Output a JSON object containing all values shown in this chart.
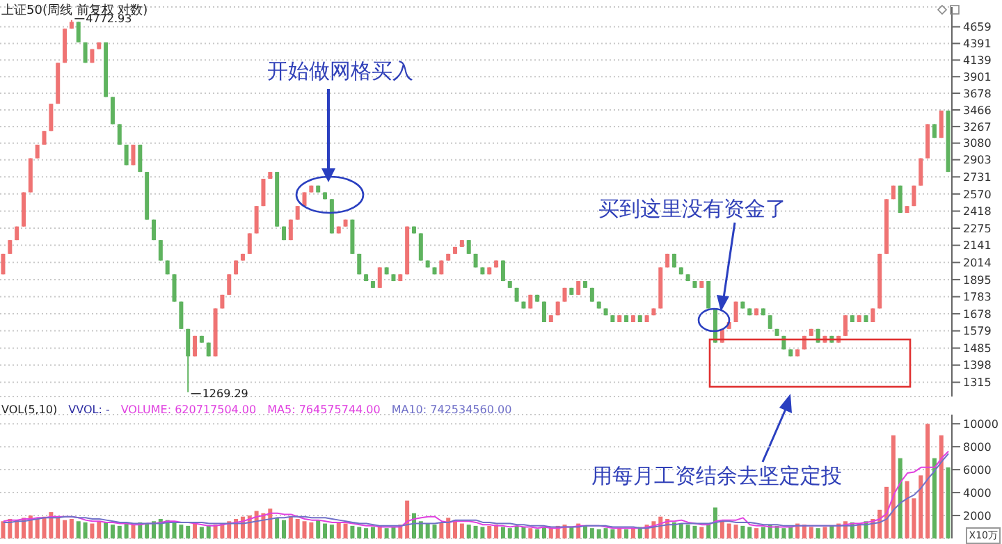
{
  "chart_data": [
    {
      "type": "candlestick",
      "title": "上证50(周线 前复权 对数)",
      "categories": [
        null,
        null,
        null,
        null,
        null,
        null,
        null,
        null,
        null,
        null,
        null,
        null,
        null,
        null,
        null,
        null,
        null,
        null,
        null,
        null,
        null,
        null,
        null,
        null,
        null,
        null,
        null,
        null,
        null,
        null,
        null,
        null,
        null,
        null,
        null,
        null,
        null,
        null,
        null,
        null,
        null,
        null,
        null,
        null,
        null,
        null,
        null,
        null,
        null,
        null,
        null,
        null,
        null,
        null,
        null,
        null,
        null,
        null,
        null,
        null,
        null,
        null,
        null,
        null,
        null,
        null,
        null,
        null,
        null,
        null,
        null,
        null,
        null,
        null,
        null,
        null,
        null,
        null,
        null,
        null,
        null,
        null,
        null,
        null,
        null,
        null,
        null,
        null,
        null,
        null,
        null,
        null,
        null,
        null,
        null,
        null,
        null,
        null,
        null,
        null,
        null,
        null,
        null,
        null,
        null,
        null,
        null,
        null,
        null,
        null,
        null,
        null,
        null,
        null,
        null,
        null,
        null,
        null,
        null,
        null,
        null,
        null,
        null,
        null,
        null,
        null,
        null,
        null,
        null,
        null,
        null,
        null,
        null,
        null,
        null,
        null,
        null,
        null,
        null
      ],
      "ohlc": [
        [
          1931,
          2077,
          1931,
          2077
        ],
        [
          2077,
          2181,
          2077,
          2181
        ],
        [
          2181,
          2289,
          2181,
          2289
        ],
        [
          2289,
          2585,
          2289,
          2585
        ],
        [
          2585,
          2918,
          2585,
          2918
        ],
        [
          2918,
          3063,
          2918,
          3063
        ],
        [
          3063,
          3216,
          3063,
          3216
        ],
        [
          3216,
          3543,
          3216,
          3543
        ],
        [
          3543,
          4099,
          3543,
          4099
        ],
        [
          4099,
          4628,
          4099,
          4628
        ],
        [
          4628,
          4772.93,
          4628,
          4741
        ],
        [
          4741,
          4741,
          4408,
          4408
        ],
        [
          4408,
          4408,
          4099,
          4099
        ],
        [
          4099,
          4303,
          4099,
          4303
        ],
        [
          4303,
          4408,
          4303,
          4408
        ],
        [
          4408,
          4408,
          3630,
          3630
        ],
        [
          3630,
          3630,
          3295,
          3295
        ],
        [
          3295,
          3295,
          3063,
          3063
        ],
        [
          3063,
          3063,
          2848,
          2848
        ],
        [
          2848,
          3063,
          2848,
          3063
        ],
        [
          3063,
          3063,
          2780,
          2780
        ],
        [
          2780,
          2780,
          2346,
          2346
        ],
        [
          2346,
          2346,
          2181,
          2181
        ],
        [
          2181,
          2181,
          2028,
          2028
        ],
        [
          2028,
          2028,
          1931,
          1931
        ],
        [
          1931,
          1931,
          1752,
          1752
        ],
        [
          1752,
          1752,
          1590,
          1590
        ],
        [
          1590,
          1590,
          1269.29,
          1442
        ],
        [
          1442,
          1551,
          1442,
          1551
        ],
        [
          1551,
          1551,
          1514,
          1514
        ],
        [
          1514,
          1514,
          1442,
          1442
        ],
        [
          1442,
          1710,
          1442,
          1710
        ],
        [
          1710,
          1795,
          1710,
          1795
        ],
        [
          1795,
          1931,
          1795,
          1931
        ],
        [
          1931,
          2028,
          1931,
          2028
        ],
        [
          2028,
          2077,
          2028,
          2077
        ],
        [
          2077,
          2234,
          2077,
          2234
        ],
        [
          2234,
          2462,
          2234,
          2462
        ],
        [
          2462,
          2713,
          2462,
          2713
        ],
        [
          2713,
          2780,
          2713,
          2780
        ],
        [
          2780,
          2780,
          2289,
          2289
        ],
        [
          2289,
          2289,
          2181,
          2181
        ],
        [
          2181,
          2346,
          2181,
          2346
        ],
        [
          2346,
          2462,
          2346,
          2462
        ],
        [
          2462,
          2585,
          2462,
          2585
        ],
        [
          2585,
          2648,
          2585,
          2648
        ],
        [
          2648,
          2648,
          2585,
          2585
        ],
        [
          2585,
          2585,
          2523,
          2523
        ],
        [
          2523,
          2523,
          2234,
          2234
        ],
        [
          2234,
          2289,
          2234,
          2289
        ],
        [
          2289,
          2346,
          2289,
          2346
        ],
        [
          2346,
          2346,
          2077,
          2077
        ],
        [
          2077,
          2077,
          1931,
          1931
        ],
        [
          1931,
          1931,
          1885,
          1885
        ],
        [
          1885,
          1885,
          1840,
          1840
        ],
        [
          1840,
          1979,
          1840,
          1979
        ],
        [
          1979,
          1979,
          1931,
          1931
        ],
        [
          1931,
          1931,
          1885,
          1885
        ],
        [
          1885,
          1931,
          1885,
          1931
        ],
        [
          1931,
          2289,
          1931,
          2289
        ],
        [
          2289,
          2289,
          2234,
          2234
        ],
        [
          2234,
          2234,
          2028,
          2028
        ],
        [
          2028,
          2028,
          1979,
          1979
        ],
        [
          1979,
          1979,
          1931,
          1931
        ],
        [
          1931,
          2028,
          1931,
          2028
        ],
        [
          2028,
          2077,
          2028,
          2077
        ],
        [
          2077,
          2129,
          2077,
          2129
        ],
        [
          2129,
          2181,
          2129,
          2181
        ],
        [
          2181,
          2181,
          2077,
          2077
        ],
        [
          2077,
          2077,
          1979,
          1979
        ],
        [
          1979,
          1979,
          1931,
          1931
        ],
        [
          1931,
          1979,
          1931,
          1979
        ],
        [
          1979,
          2028,
          1979,
          2028
        ],
        [
          2028,
          2028,
          1885,
          1885
        ],
        [
          1885,
          1885,
          1840,
          1840
        ],
        [
          1840,
          1840,
          1752,
          1752
        ],
        [
          1752,
          1752,
          1710,
          1710
        ],
        [
          1710,
          1795,
          1710,
          1795
        ],
        [
          1795,
          1795,
          1752,
          1752
        ],
        [
          1752,
          1752,
          1629,
          1629
        ],
        [
          1629,
          1669,
          1629,
          1669
        ],
        [
          1669,
          1752,
          1669,
          1752
        ],
        [
          1752,
          1840,
          1752,
          1840
        ],
        [
          1840,
          1840,
          1795,
          1795
        ],
        [
          1795,
          1885,
          1795,
          1885
        ],
        [
          1885,
          1885,
          1840,
          1840
        ],
        [
          1840,
          1840,
          1752,
          1752
        ],
        [
          1752,
          1752,
          1710,
          1710
        ],
        [
          1710,
          1710,
          1669,
          1669
        ],
        [
          1669,
          1669,
          1629,
          1629
        ],
        [
          1629,
          1669,
          1629,
          1669
        ],
        [
          1669,
          1669,
          1629,
          1629
        ],
        [
          1629,
          1669,
          1629,
          1669
        ],
        [
          1669,
          1669,
          1629,
          1629
        ],
        [
          1629,
          1669,
          1629,
          1669
        ],
        [
          1669,
          1710,
          1669,
          1710
        ],
        [
          1710,
          1979,
          1710,
          1979
        ],
        [
          1979,
          2077,
          1979,
          2077
        ],
        [
          2077,
          2077,
          1979,
          1979
        ],
        [
          1979,
          1979,
          1931,
          1931
        ],
        [
          1931,
          1931,
          1885,
          1885
        ],
        [
          1885,
          1885,
          1840,
          1840
        ],
        [
          1840,
          1885,
          1840,
          1885
        ],
        [
          1885,
          1885,
          1710,
          1710
        ],
        [
          1710,
          1710,
          1514,
          1514
        ],
        [
          1514,
          1590,
          1514,
          1590
        ],
        [
          1590,
          1629,
          1590,
          1629
        ],
        [
          1629,
          1752,
          1629,
          1752
        ],
        [
          1752,
          1752,
          1710,
          1710
        ],
        [
          1710,
          1710,
          1669,
          1669
        ],
        [
          1669,
          1710,
          1669,
          1710
        ],
        [
          1710,
          1710,
          1669,
          1669
        ],
        [
          1669,
          1669,
          1590,
          1590
        ],
        [
          1590,
          1590,
          1551,
          1551
        ],
        [
          1551,
          1551,
          1478,
          1478
        ],
        [
          1478,
          1478,
          1442,
          1442
        ],
        [
          1442,
          1478,
          1442,
          1478
        ],
        [
          1478,
          1551,
          1478,
          1551
        ],
        [
          1551,
          1590,
          1551,
          1590
        ],
        [
          1590,
          1590,
          1514,
          1514
        ],
        [
          1514,
          1551,
          1514,
          1551
        ],
        [
          1551,
          1551,
          1514,
          1514
        ],
        [
          1514,
          1551,
          1514,
          1551
        ],
        [
          1551,
          1669,
          1551,
          1669
        ],
        [
          1669,
          1669,
          1629,
          1629
        ],
        [
          1629,
          1669,
          1629,
          1669
        ],
        [
          1669,
          1669,
          1629,
          1629
        ],
        [
          1629,
          1710,
          1629,
          1710
        ],
        [
          1710,
          2077,
          1710,
          2077
        ],
        [
          2077,
          2523,
          2077,
          2523
        ],
        [
          2523,
          2648,
          2523,
          2648
        ],
        [
          2648,
          2648,
          2403,
          2403
        ],
        [
          2403,
          2462,
          2403,
          2462
        ],
        [
          2462,
          2648,
          2462,
          2648
        ],
        [
          2648,
          2918,
          2648,
          2918
        ],
        [
          2918,
          3295,
          2918,
          3295
        ],
        [
          3295,
          3295,
          3138,
          3138
        ],
        [
          3138,
          3458,
          3138,
          3458
        ],
        [
          3458,
          3458,
          2780,
          2780
        ]
      ],
      "colors": [
        "#ef7373",
        "#ef7373",
        "#ef7373",
        "#ef7373",
        "#ef7373",
        "#ef7373",
        "#ef7373",
        "#ef7373",
        "#ef7373",
        "#ef7373",
        "#ef7373",
        "#5fb35f",
        "#5fb35f",
        "#ef7373",
        "#ef7373",
        "#5fb35f",
        "#5fb35f",
        "#5fb35f",
        "#5fb35f",
        "#ef7373",
        "#5fb35f",
        "#5fb35f",
        "#5fb35f",
        "#5fb35f",
        "#5fb35f",
        "#5fb35f",
        "#5fb35f",
        "#5fb35f",
        "#ef7373",
        "#5fb35f",
        "#5fb35f",
        "#ef7373",
        "#ef7373",
        "#ef7373",
        "#ef7373",
        "#ef7373",
        "#ef7373",
        "#ef7373",
        "#ef7373",
        "#ef7373",
        "#5fb35f",
        "#5fb35f",
        "#ef7373",
        "#ef7373",
        "#ef7373",
        "#ef7373",
        "#5fb35f",
        "#5fb35f",
        "#5fb35f",
        "#ef7373",
        "#ef7373",
        "#5fb35f",
        "#5fb35f",
        "#5fb35f",
        "#5fb35f",
        "#ef7373",
        "#5fb35f",
        "#5fb35f",
        "#ef7373",
        "#ef7373",
        "#5fb35f",
        "#5fb35f",
        "#5fb35f",
        "#5fb35f",
        "#ef7373",
        "#ef7373",
        "#ef7373",
        "#ef7373",
        "#5fb35f",
        "#5fb35f",
        "#5fb35f",
        "#ef7373",
        "#ef7373",
        "#5fb35f",
        "#5fb35f",
        "#5fb35f",
        "#5fb35f",
        "#ef7373",
        "#5fb35f",
        "#5fb35f",
        "#ef7373",
        "#ef7373",
        "#ef7373",
        "#5fb35f",
        "#ef7373",
        "#5fb35f",
        "#5fb35f",
        "#5fb35f",
        "#5fb35f",
        "#5fb35f",
        "#ef7373",
        "#5fb35f",
        "#ef7373",
        "#5fb35f",
        "#ef7373",
        "#ef7373",
        "#ef7373",
        "#ef7373",
        "#5fb35f",
        "#5fb35f",
        "#5fb35f",
        "#5fb35f",
        "#ef7373",
        "#5fb35f",
        "#5fb35f",
        "#ef7373",
        "#ef7373",
        "#ef7373",
        "#5fb35f",
        "#5fb35f",
        "#ef7373",
        "#5fb35f",
        "#5fb35f",
        "#5fb35f",
        "#5fb35f",
        "#5fb35f",
        "#ef7373",
        "#ef7373",
        "#ef7373",
        "#5fb35f",
        "#ef7373",
        "#5fb35f",
        "#ef7373",
        "#ef7373",
        "#5fb35f",
        "#ef7373",
        "#5fb35f",
        "#ef7373",
        "#ef7373",
        "#ef7373",
        "#ef7373",
        "#5fb35f",
        "#ef7373",
        "#ef7373",
        "#ef7373",
        "#ef7373",
        "#5fb35f",
        "#ef7373",
        "#5fb35f"
      ],
      "log": true,
      "ylim": [
        1250,
        5000
      ],
      "yticks": [
        1315,
        1398,
        1485,
        1579,
        1678,
        1783,
        1895,
        2014,
        2141,
        2275,
        2418,
        2570,
        2731,
        2903,
        3080,
        3267,
        3466,
        3678,
        3901,
        4139,
        4391,
        4659
      ],
      "grid": "y",
      "tick_labels": "y",
      "annotations": [
        "4772.93",
        "1269.29",
        "开始做网格买入",
        "买到这里没有资金了",
        "用每月工资结余去坚定定投"
      ]
    },
    {
      "type": "bar",
      "title": "VOL(5,10)",
      "categories": [
        null,
        null,
        null,
        null,
        null,
        null,
        null,
        null,
        null,
        null,
        null,
        null,
        null,
        null,
        null,
        null,
        null,
        null,
        null,
        null,
        null,
        null,
        null,
        null,
        null,
        null,
        null,
        null,
        null,
        null,
        null,
        null,
        null,
        null,
        null,
        null,
        null,
        null,
        null,
        null,
        null,
        null,
        null,
        null,
        null,
        null,
        null,
        null,
        null,
        null,
        null,
        null,
        null,
        null,
        null,
        null,
        null,
        null,
        null,
        null,
        null,
        null,
        null,
        null,
        null,
        null,
        null,
        null,
        null,
        null,
        null,
        null,
        null,
        null,
        null,
        null,
        null,
        null,
        null,
        null,
        null,
        null,
        null,
        null,
        null,
        null,
        null,
        null,
        null,
        null,
        null,
        null,
        null,
        null,
        null,
        null,
        null,
        null,
        null,
        null,
        null,
        null,
        null,
        null,
        null,
        null,
        null,
        null,
        null,
        null,
        null,
        null,
        null,
        null,
        null,
        null,
        null,
        null,
        null,
        null,
        null,
        null,
        null,
        null,
        null,
        null,
        null,
        null,
        null,
        null,
        null,
        null,
        null,
        null,
        null,
        null,
        null,
        null,
        null
      ],
      "series": [
        {
          "type": "bar",
          "colors": [
            "#ef7373",
            "#ef7373",
            "#ef7373",
            "#ef7373",
            "#ef7373",
            "#ef7373",
            "#ef7373",
            "#ef7373",
            "#ef7373",
            "#ef7373",
            "#ef7373",
            "#5fb35f",
            "#5fb35f",
            "#ef7373",
            "#ef7373",
            "#5fb35f",
            "#5fb35f",
            "#5fb35f",
            "#5fb35f",
            "#ef7373",
            "#5fb35f",
            "#5fb35f",
            "#5fb35f",
            "#5fb35f",
            "#5fb35f",
            "#5fb35f",
            "#5fb35f",
            "#5fb35f",
            "#ef7373",
            "#5fb35f",
            "#5fb35f",
            "#ef7373",
            "#ef7373",
            "#ef7373",
            "#ef7373",
            "#ef7373",
            "#ef7373",
            "#ef7373",
            "#ef7373",
            "#ef7373",
            "#5fb35f",
            "#5fb35f",
            "#ef7373",
            "#ef7373",
            "#ef7373",
            "#ef7373",
            "#5fb35f",
            "#5fb35f",
            "#5fb35f",
            "#ef7373",
            "#ef7373",
            "#5fb35f",
            "#5fb35f",
            "#5fb35f",
            "#5fb35f",
            "#ef7373",
            "#5fb35f",
            "#5fb35f",
            "#ef7373",
            "#ef7373",
            "#5fb35f",
            "#5fb35f",
            "#5fb35f",
            "#5fb35f",
            "#ef7373",
            "#ef7373",
            "#ef7373",
            "#ef7373",
            "#5fb35f",
            "#5fb35f",
            "#5fb35f",
            "#ef7373",
            "#ef7373",
            "#5fb35f",
            "#5fb35f",
            "#5fb35f",
            "#5fb35f",
            "#ef7373",
            "#5fb35f",
            "#5fb35f",
            "#ef7373",
            "#ef7373",
            "#ef7373",
            "#5fb35f",
            "#ef7373",
            "#5fb35f",
            "#5fb35f",
            "#5fb35f",
            "#5fb35f",
            "#5fb35f",
            "#ef7373",
            "#5fb35f",
            "#ef7373",
            "#5fb35f",
            "#ef7373",
            "#ef7373",
            "#ef7373",
            "#ef7373",
            "#5fb35f",
            "#5fb35f",
            "#5fb35f",
            "#5fb35f",
            "#ef7373",
            "#5fb35f",
            "#5fb35f",
            "#ef7373",
            "#ef7373",
            "#ef7373",
            "#5fb35f",
            "#5fb35f",
            "#ef7373",
            "#5fb35f",
            "#5fb35f",
            "#5fb35f",
            "#5fb35f",
            "#5fb35f",
            "#ef7373",
            "#ef7373",
            "#ef7373",
            "#5fb35f",
            "#ef7373",
            "#5fb35f",
            "#ef7373",
            "#ef7373",
            "#5fb35f",
            "#ef7373",
            "#5fb35f",
            "#ef7373",
            "#ef7373",
            "#ef7373",
            "#ef7373",
            "#5fb35f",
            "#ef7373",
            "#ef7373",
            "#ef7373",
            "#ef7373",
            "#5fb35f",
            "#ef7373",
            "#5fb35f"
          ],
          "values": [
            1500,
            1700,
            1600,
            1800,
            2000,
            1700,
            1900,
            2300,
            1800,
            1600,
            1700,
            1500,
            1400,
            1300,
            1500,
            1400,
            1200,
            1100,
            1300,
            1200,
            1400,
            1300,
            1500,
            1700,
            1600,
            1400,
            1200,
            1100,
            1300,
            1000,
            1100,
            1200,
            1300,
            1500,
            1700,
            1900,
            2000,
            2400,
            2200,
            2600,
            1800,
            1600,
            1900,
            1700,
            1500,
            1400,
            1600,
            1300,
            1200,
            1400,
            1300,
            1100,
            1000,
            900,
            1000,
            1100,
            900,
            1000,
            1200,
            3300,
            2200,
            1500,
            1300,
            1200,
            1400,
            1800,
            1600,
            1300,
            1200,
            1100,
            1000,
            1100,
            1200,
            1000,
            900,
            1100,
            1000,
            900,
            800,
            1000,
            900,
            1100,
            1200,
            1000,
            1300,
            1100,
            900,
            800,
            900,
            800,
            900,
            800,
            900,
            1000,
            1200,
            1500,
            1900,
            1700,
            1400,
            1300,
            1200,
            1100,
            1000,
            1300,
            2700,
            1500,
            1300,
            1200,
            1100,
            1000,
            900,
            1000,
            1200,
            1100,
            900,
            1000,
            1300,
            1200,
            1000,
            900,
            1000,
            1100,
            1300,
            1500,
            1400,
            1300,
            1500,
            1700,
            2500,
            4500,
            9000,
            7000,
            5000,
            3500,
            5500,
            10000,
            7000,
            9000,
            6200
          ]
        },
        {
          "type": "line",
          "color": "#e040e0",
          "values": [
            1500,
            1600,
            1600,
            1700,
            1700,
            1800,
            1800,
            1900,
            1900,
            1900,
            1900,
            1800,
            1600,
            1500,
            1500,
            1400,
            1400,
            1300,
            1300,
            1200,
            1200,
            1300,
            1300,
            1400,
            1500,
            1500,
            1400,
            1400,
            1300,
            1200,
            1100,
            1100,
            1200,
            1300,
            1400,
            1500,
            1700,
            1900,
            2000,
            2200,
            2200,
            2100,
            2100,
            1900,
            1700,
            1600,
            1600,
            1500,
            1400,
            1400,
            1400,
            1300,
            1200,
            1100,
            1100,
            1000,
            1000,
            1000,
            1000,
            1500,
            1700,
            1800,
            1900,
            1900,
            1500,
            1400,
            1500,
            1500,
            1500,
            1400,
            1200,
            1200,
            1100,
            1100,
            1000,
            1100,
            1000,
            1000,
            900,
            1000,
            900,
            900,
            1000,
            1000,
            1100,
            1100,
            1100,
            1100,
            1000,
            900,
            900,
            900,
            900,
            900,
            1000,
            1100,
            1300,
            1500,
            1500,
            1600,
            1400,
            1300,
            1200,
            1200,
            1500,
            1600,
            1600,
            1600,
            1800,
            1200,
            1100,
            1100,
            1000,
            1000,
            1000,
            1000,
            1100,
            1100,
            1100,
            1100,
            1100,
            1100,
            1100,
            1200,
            1300,
            1300,
            1400,
            1500,
            1700,
            2200,
            3800,
            4900,
            5700,
            5800,
            6200,
            6200,
            6200,
            7000,
            7600
          ]
        },
        {
          "type": "line",
          "color": "#7070c8",
          "values": [
            1400,
            1400,
            1500,
            1500,
            1600,
            1700,
            1800,
            1800,
            1800,
            1900,
            1900,
            1800,
            1800,
            1700,
            1700,
            1600,
            1500,
            1400,
            1400,
            1300,
            1300,
            1300,
            1300,
            1300,
            1400,
            1400,
            1400,
            1400,
            1400,
            1400,
            1300,
            1300,
            1300,
            1300,
            1300,
            1300,
            1400,
            1500,
            1600,
            1700,
            1800,
            1800,
            1900,
            1900,
            1900,
            1800,
            1800,
            1800,
            1700,
            1600,
            1500,
            1400,
            1300,
            1300,
            1200,
            1100,
            1100,
            1100,
            1100,
            1200,
            1300,
            1300,
            1300,
            1300,
            1400,
            1400,
            1600,
            1600,
            1600,
            1600,
            1400,
            1400,
            1300,
            1300,
            1300,
            1200,
            1200,
            1100,
            1100,
            1100,
            1000,
            1000,
            1000,
            1000,
            1000,
            1100,
            1100,
            1100,
            1100,
            1000,
            1000,
            1000,
            1000,
            900,
            900,
            1000,
            1100,
            1200,
            1200,
            1300,
            1300,
            1300,
            1300,
            1300,
            1400,
            1500,
            1500,
            1400,
            1400,
            1400,
            1300,
            1200,
            1200,
            1200,
            1100,
            1100,
            1100,
            1100,
            1100,
            1100,
            1100,
            1100,
            1100,
            1100,
            1100,
            1200,
            1200,
            1300,
            1400,
            1700,
            2500,
            3100,
            3500,
            3800,
            4400,
            5200,
            5900,
            6700,
            7400
          ]
        }
      ],
      "ylim": [
        0,
        10800
      ],
      "yticks": [
        2000,
        4000,
        6000,
        8000,
        10000
      ],
      "ylabel": "X10万",
      "grid": "y",
      "tick_labels": "y",
      "annotations": [
        "VVOL: -",
        "VOLUME: 620717504.00",
        "MA5: 764575744.00",
        "MA10: 742534560.00"
      ]
    }
  ]
}
